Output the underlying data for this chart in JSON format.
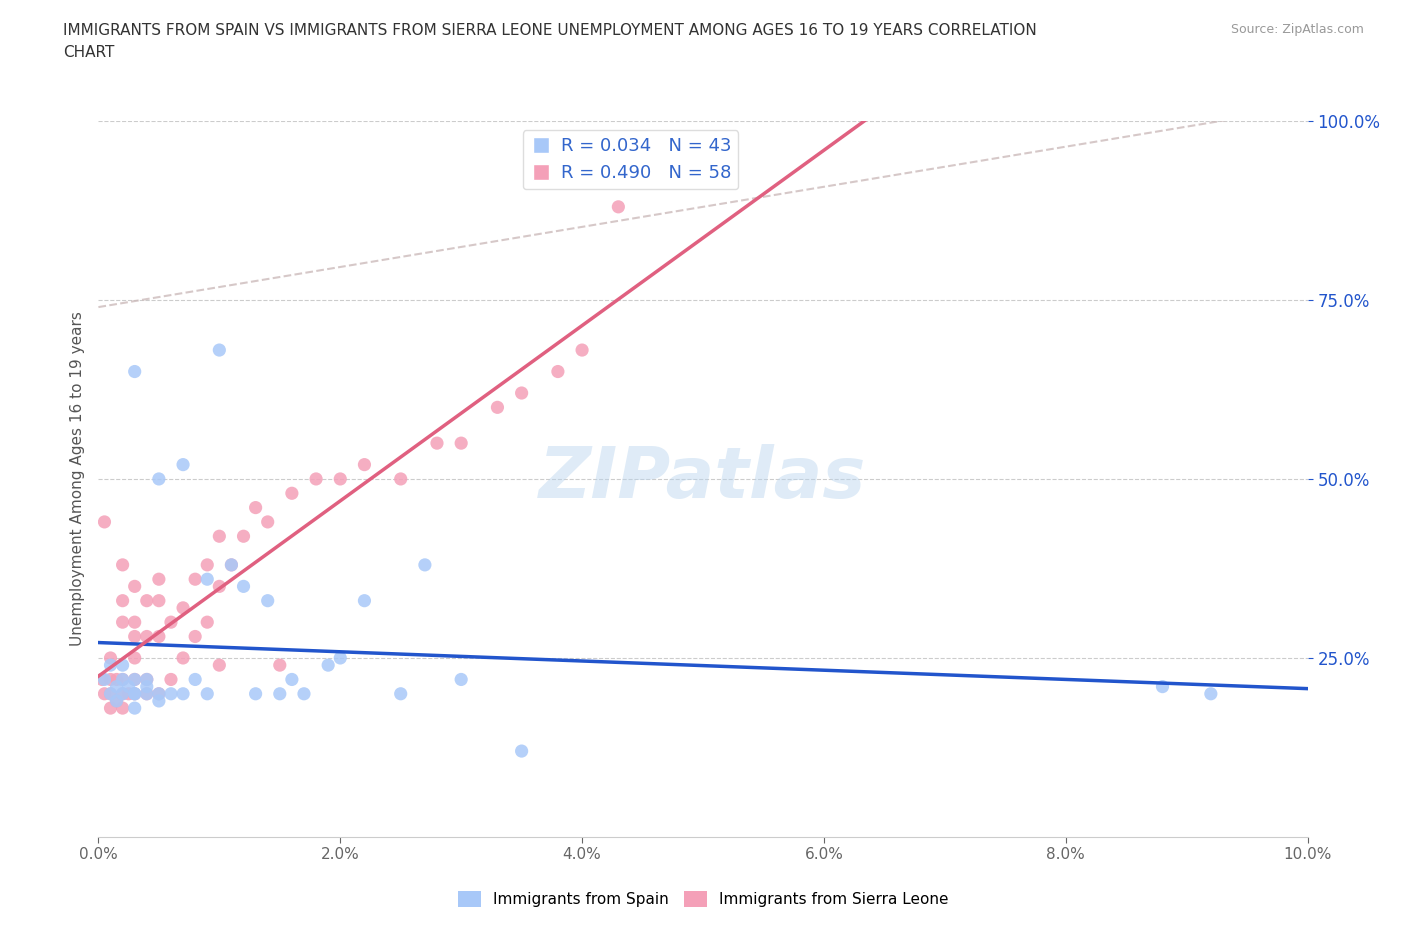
{
  "title": "IMMIGRANTS FROM SPAIN VS IMMIGRANTS FROM SIERRA LEONE UNEMPLOYMENT AMONG AGES 16 TO 19 YEARS CORRELATION\nCHART",
  "source": "Source: ZipAtlas.com",
  "ylabel": "Unemployment Among Ages 16 to 19 years",
  "xlim": [
    0.0,
    0.1
  ],
  "ylim": [
    0.0,
    1.0
  ],
  "xticks": [
    0.0,
    0.02,
    0.04,
    0.06,
    0.08,
    0.1
  ],
  "yticks_right": [
    0.25,
    0.5,
    0.75,
    1.0
  ],
  "spain_color": "#a8c8f8",
  "sierra_leone_color": "#f4a0b8",
  "spain_line_color": "#2255cc",
  "sierra_leone_line_color": "#e06080",
  "ref_line_color": "#ccbbbb",
  "watermark": "ZIPatlas",
  "spain_R": 0.034,
  "spain_N": 43,
  "sierra_leone_R": 0.49,
  "sierra_leone_N": 58,
  "spain_scatter_x": [
    0.0005,
    0.001,
    0.001,
    0.0015,
    0.0015,
    0.002,
    0.002,
    0.002,
    0.0025,
    0.003,
    0.003,
    0.003,
    0.003,
    0.003,
    0.004,
    0.004,
    0.004,
    0.005,
    0.005,
    0.005,
    0.006,
    0.007,
    0.007,
    0.008,
    0.009,
    0.009,
    0.01,
    0.011,
    0.012,
    0.013,
    0.014,
    0.015,
    0.016,
    0.017,
    0.019,
    0.02,
    0.022,
    0.025,
    0.027,
    0.03,
    0.035,
    0.088,
    0.092
  ],
  "spain_scatter_y": [
    0.22,
    0.2,
    0.24,
    0.19,
    0.21,
    0.2,
    0.22,
    0.24,
    0.21,
    0.2,
    0.18,
    0.22,
    0.65,
    0.2,
    0.2,
    0.22,
    0.21,
    0.5,
    0.2,
    0.19,
    0.2,
    0.52,
    0.2,
    0.22,
    0.36,
    0.2,
    0.68,
    0.38,
    0.35,
    0.2,
    0.33,
    0.2,
    0.22,
    0.2,
    0.24,
    0.25,
    0.33,
    0.2,
    0.38,
    0.22,
    0.12,
    0.21,
    0.2
  ],
  "sierra_leone_scatter_x": [
    0.0003,
    0.0005,
    0.0005,
    0.001,
    0.001,
    0.001,
    0.001,
    0.0015,
    0.0015,
    0.002,
    0.002,
    0.002,
    0.002,
    0.002,
    0.002,
    0.0025,
    0.003,
    0.003,
    0.003,
    0.003,
    0.003,
    0.003,
    0.004,
    0.004,
    0.004,
    0.004,
    0.005,
    0.005,
    0.005,
    0.005,
    0.006,
    0.006,
    0.007,
    0.007,
    0.008,
    0.008,
    0.009,
    0.009,
    0.01,
    0.01,
    0.01,
    0.011,
    0.012,
    0.013,
    0.014,
    0.015,
    0.016,
    0.018,
    0.02,
    0.022,
    0.025,
    0.028,
    0.03,
    0.033,
    0.035,
    0.038,
    0.04,
    0.043
  ],
  "sierra_leone_scatter_y": [
    0.22,
    0.2,
    0.44,
    0.18,
    0.22,
    0.2,
    0.25,
    0.22,
    0.19,
    0.18,
    0.2,
    0.22,
    0.3,
    0.33,
    0.38,
    0.2,
    0.2,
    0.22,
    0.25,
    0.28,
    0.3,
    0.35,
    0.2,
    0.22,
    0.28,
    0.33,
    0.2,
    0.28,
    0.33,
    0.36,
    0.22,
    0.3,
    0.25,
    0.32,
    0.28,
    0.36,
    0.3,
    0.38,
    0.24,
    0.35,
    0.42,
    0.38,
    0.42,
    0.46,
    0.44,
    0.24,
    0.48,
    0.5,
    0.5,
    0.52,
    0.5,
    0.55,
    0.55,
    0.6,
    0.62,
    0.65,
    0.68,
    0.88
  ],
  "background_color": "#ffffff",
  "grid_color": "#cccccc"
}
